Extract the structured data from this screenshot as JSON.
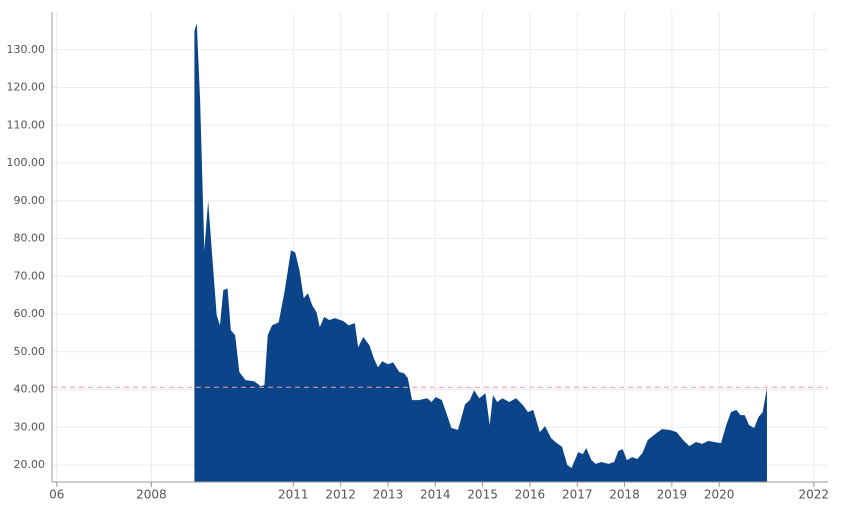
{
  "chart_data": {
    "type": "area",
    "color": "#0c4489",
    "grid": true,
    "x": [
      2008.91,
      2008.96,
      2009.03,
      2009.12,
      2009.2,
      2009.27,
      2009.38,
      2009.45,
      2009.52,
      2009.61,
      2009.68,
      2009.77,
      2009.86,
      2009.99,
      2010.17,
      2010.31,
      2010.39,
      2010.46,
      2010.55,
      2010.69,
      2010.82,
      2010.95,
      2011.04,
      2011.13,
      2011.22,
      2011.31,
      2011.4,
      2011.49,
      2011.56,
      2011.65,
      2011.76,
      2011.88,
      2012.06,
      2012.17,
      2012.3,
      2012.37,
      2012.48,
      2012.61,
      2012.7,
      2012.79,
      2012.88,
      2013.0,
      2013.11,
      2013.24,
      2013.34,
      2013.42,
      2013.51,
      2013.65,
      2013.83,
      2013.92,
      2014.01,
      2014.14,
      2014.25,
      2014.34,
      2014.48,
      2014.63,
      2014.73,
      2014.82,
      2014.93,
      2015.06,
      2015.15,
      2015.22,
      2015.31,
      2015.42,
      2015.56,
      2015.71,
      2015.85,
      2015.96,
      2016.07,
      2016.21,
      2016.32,
      2016.45,
      2016.57,
      2016.68,
      2016.79,
      2016.88,
      2017.02,
      2017.12,
      2017.19,
      2017.3,
      2017.39,
      2017.51,
      2017.66,
      2017.78,
      2017.87,
      2017.96,
      2018.05,
      2018.16,
      2018.27,
      2018.38,
      2018.49,
      2018.65,
      2018.79,
      2018.95,
      2019.1,
      2019.24,
      2019.37,
      2019.51,
      2019.64,
      2019.77,
      2019.89,
      2020.04,
      2020.15,
      2020.25,
      2020.36,
      2020.45,
      2020.54,
      2020.63,
      2020.74,
      2020.83,
      2020.92,
      2021.01
    ],
    "values": [
      135,
      137,
      116.6,
      76.9,
      90,
      78,
      59.7,
      57,
      66.3,
      66.8,
      55.7,
      54.4,
      44.6,
      42.5,
      42.2,
      40.9,
      41.2,
      54.4,
      57,
      57.8,
      66.3,
      76.9,
      76.3,
      71.6,
      64.2,
      65.5,
      62.3,
      60.5,
      56.5,
      59.2,
      58.4,
      58.9,
      58.1,
      57,
      57.6,
      51.2,
      53.9,
      51.7,
      48.3,
      45.9,
      47.5,
      46.7,
      47.2,
      44.6,
      44.3,
      43,
      37.2,
      37.2,
      37.7,
      36.7,
      38,
      37.2,
      33.2,
      29.8,
      29.3,
      36.1,
      37.2,
      39.8,
      37.7,
      39,
      30.6,
      38.5,
      36.7,
      37.7,
      36.7,
      37.7,
      35.9,
      34,
      34.6,
      28.7,
      30.3,
      27.1,
      25.8,
      24.8,
      20,
      19.2,
      23.4,
      22.9,
      24.5,
      21.3,
      20.3,
      20.8,
      20.3,
      20.8,
      23.7,
      24.2,
      21.3,
      22.1,
      21.6,
      23.2,
      26.6,
      28.2,
      29.5,
      29.3,
      28.7,
      26.6,
      25,
      26.1,
      25.6,
      26.4,
      26.1,
      25.8,
      30.6,
      34,
      34.6,
      33.2,
      33.2,
      30.6,
      29.8,
      32.7,
      34,
      40.4
    ],
    "reference_line": 40.6,
    "xlim": [
      2005.9,
      2022.3
    ],
    "xticks": [
      {
        "value": 2006,
        "label": "06"
      },
      2008,
      2011,
      2012,
      2013,
      2014,
      2015,
      2016,
      2017,
      2018,
      2019,
      2020,
      2022
    ],
    "ylim": [
      15.5,
      140
    ],
    "yticks": [
      {
        "value": 20,
        "label": "20.00"
      },
      {
        "value": 30,
        "label": "30.00"
      },
      {
        "value": 40,
        "label": "40.00"
      },
      {
        "value": 50,
        "label": "50.00"
      },
      {
        "value": 60,
        "label": "60.00"
      },
      {
        "value": 70,
        "label": "70.00"
      },
      {
        "value": 80,
        "label": "80.00"
      },
      {
        "value": 90,
        "label": "90.00"
      },
      {
        "value": 100,
        "label": "100.00"
      },
      {
        "value": 110,
        "label": "110.00"
      },
      {
        "value": 120,
        "label": "120.00"
      },
      {
        "value": 130,
        "label": "130.00"
      }
    ]
  }
}
